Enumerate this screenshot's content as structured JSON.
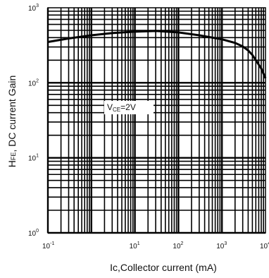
{
  "chart_data": {
    "type": "line",
    "x_scale": "log",
    "y_scale": "log",
    "xlim": [
      0.1,
      10000
    ],
    "ylim": [
      1,
      1000
    ],
    "grid": true,
    "xlabel": "Ic,Collector current  (mA)",
    "ylabel": "HFE, DC current Gain",
    "ylabel_main": "H",
    "ylabel_sub": "FE",
    "ylabel_rest": ", DC current Gain",
    "annotation_main": "V",
    "annotation_sub": "CE",
    "annotation_rest": "=2V",
    "x_ticks": [
      {
        "base": "10",
        "exp": "-1",
        "value": 0.1
      },
      {
        "base": "10",
        "exp": "1",
        "value": 10
      },
      {
        "base": "10",
        "exp": "2",
        "value": 100
      },
      {
        "base": "10",
        "exp": "3",
        "value": 1000
      },
      {
        "base": "10",
        "exp": "4",
        "value": 10000
      }
    ],
    "y_ticks": [
      {
        "base": "10",
        "exp": "0",
        "value": 1
      },
      {
        "base": "10",
        "exp": "1",
        "value": 10
      },
      {
        "base": "10",
        "exp": "2",
        "value": 100
      },
      {
        "base": "10",
        "exp": "3",
        "value": 1000
      }
    ],
    "series": [
      {
        "x": [
          0.1,
          0.3,
          1,
          3,
          10,
          30,
          100,
          300,
          1000,
          2000,
          3000,
          4000,
          5000,
          6000,
          8000,
          10000
        ],
        "y": [
          350,
          390,
          430,
          460,
          480,
          490,
          470,
          430,
          380,
          340,
          305,
          270,
          235,
          200,
          155,
          115
        ]
      }
    ]
  }
}
